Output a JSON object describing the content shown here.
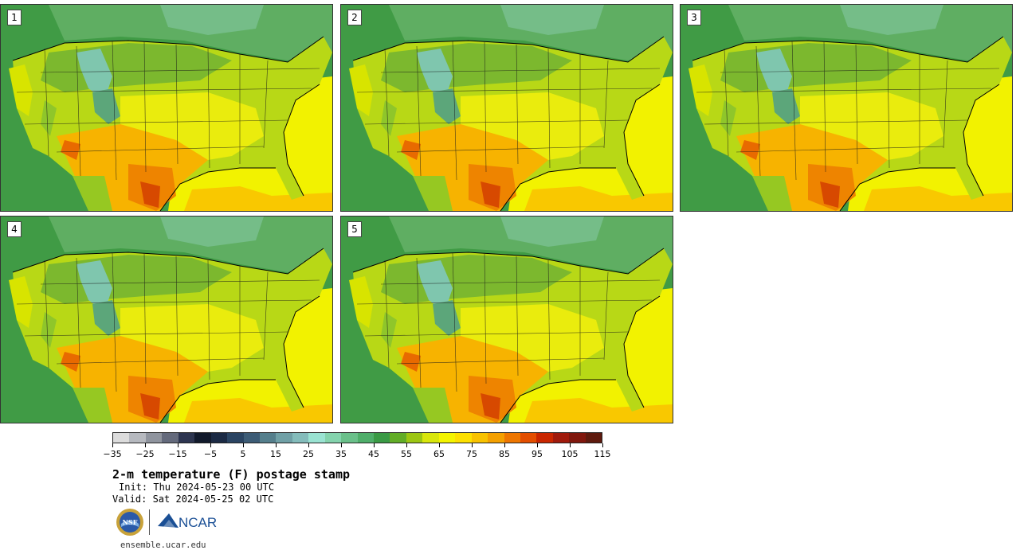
{
  "panels": [
    {
      "number": "1"
    },
    {
      "number": "2"
    },
    {
      "number": "3"
    },
    {
      "number": "4"
    },
    {
      "number": "5"
    }
  ],
  "colorbar": {
    "colors": [
      "#dcdcdc",
      "#b6b9bf",
      "#8f949e",
      "#646a7c",
      "#2d3550",
      "#121a2c",
      "#1b2a44",
      "#2a4462",
      "#3d5c76",
      "#557f8c",
      "#70a0a6",
      "#84bcbb",
      "#9ae3d2",
      "#84d3ad",
      "#6ac08a",
      "#4fae6a",
      "#3a9a45",
      "#62ad27",
      "#9cc613",
      "#d8e60c",
      "#f4f400",
      "#fde000",
      "#f8c200",
      "#f4a000",
      "#ee7600",
      "#e34e00",
      "#c92600",
      "#a01a0c",
      "#80170d",
      "#5e1a0e"
    ],
    "ticks": [
      "−35",
      "−25",
      "−15",
      "−5",
      "5",
      "15",
      "25",
      "35",
      "45",
      "55",
      "65",
      "75",
      "85",
      "95",
      "105",
      "115"
    ]
  },
  "header": {
    "title": "2-m temperature (F) postage stamp",
    "init": "Init: Thu 2024-05-23 00 UTC",
    "valid": "Valid: Sat 2024-05-25 02 UTC"
  },
  "logos": {
    "nsf_text": "NSF",
    "ncar_text": "NCAR"
  },
  "footer": {
    "site": "ensemble.ucar.edu"
  }
}
